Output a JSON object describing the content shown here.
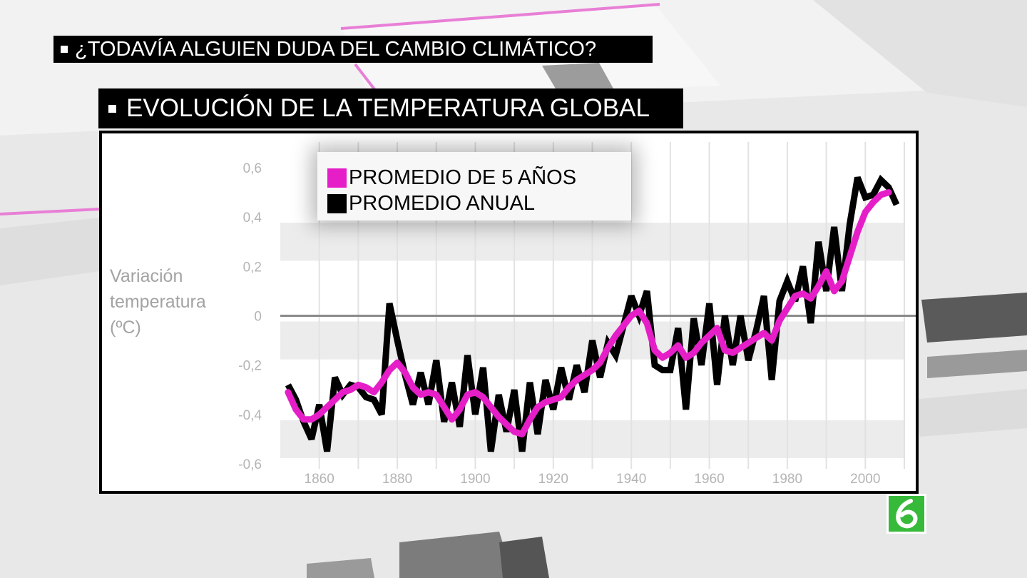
{
  "header": {
    "question": "¿TODAVÍA ALGUIEN DUDA DEL CAMBIO CLIMÁTICO?",
    "chart_title": "EVOLUCIÓN DE LA TEMPERATURA GLOBAL"
  },
  "colors": {
    "five_year": "#e51ec8",
    "annual": "#000000",
    "banner_bg": "#000000",
    "logo": "#37b93a"
  },
  "channel_logo": {
    "name": "la-sexta-logo-icon",
    "glyph": "6"
  },
  "chart_data": {
    "type": "line",
    "title": "EVOLUCIÓN DE LA TEMPERATURA GLOBAL",
    "ylabel": "Variación\ntemperatura\n(ºC)",
    "xlabel": "",
    "xlim": [
      1850,
      2010
    ],
    "ylim": [
      -0.6,
      0.6
    ],
    "x_ticks": [
      1860,
      1880,
      1900,
      1920,
      1940,
      1960,
      1980,
      2000
    ],
    "y_ticks": [
      0.6,
      0.4,
      0.2,
      0,
      -0.2,
      -0.4,
      -0.6
    ],
    "y_tick_labels": [
      "0,6",
      "0,4",
      "0,2",
      "0",
      "-0,2",
      "-0,4",
      "-0,6"
    ],
    "legend_placement": "top-left",
    "grid": true,
    "series": [
      {
        "name": "PROMEDIO DE 5 AÑOS",
        "color": "#e51ec8",
        "x": [
          1852,
          1854,
          1856,
          1858,
          1860,
          1862,
          1864,
          1866,
          1868,
          1870,
          1872,
          1874,
          1876,
          1878,
          1880,
          1882,
          1884,
          1886,
          1888,
          1890,
          1892,
          1894,
          1896,
          1898,
          1900,
          1902,
          1904,
          1906,
          1908,
          1910,
          1912,
          1914,
          1916,
          1918,
          1920,
          1922,
          1924,
          1926,
          1928,
          1930,
          1932,
          1934,
          1936,
          1938,
          1940,
          1942,
          1944,
          1946,
          1948,
          1950,
          1952,
          1954,
          1956,
          1958,
          1960,
          1962,
          1964,
          1966,
          1968,
          1970,
          1972,
          1974,
          1976,
          1978,
          1980,
          1982,
          1984,
          1986,
          1988,
          1990,
          1992,
          1994,
          1996,
          1998,
          2000,
          2002,
          2004,
          2006
        ],
        "y": [
          -0.31,
          -0.38,
          -0.42,
          -0.42,
          -0.4,
          -0.37,
          -0.34,
          -0.31,
          -0.3,
          -0.28,
          -0.29,
          -0.31,
          -0.27,
          -0.22,
          -0.19,
          -0.23,
          -0.29,
          -0.32,
          -0.31,
          -0.32,
          -0.37,
          -0.42,
          -0.38,
          -0.32,
          -0.31,
          -0.33,
          -0.37,
          -0.41,
          -0.44,
          -0.47,
          -0.48,
          -0.42,
          -0.37,
          -0.35,
          -0.34,
          -0.33,
          -0.29,
          -0.26,
          -0.24,
          -0.22,
          -0.19,
          -0.13,
          -0.08,
          -0.04,
          0.0,
          0.02,
          -0.03,
          -0.14,
          -0.17,
          -0.15,
          -0.12,
          -0.17,
          -0.15,
          -0.11,
          -0.08,
          -0.05,
          -0.14,
          -0.15,
          -0.13,
          -0.11,
          -0.09,
          -0.07,
          -0.1,
          -0.02,
          0.03,
          0.08,
          0.09,
          0.07,
          0.12,
          0.18,
          0.1,
          0.14,
          0.24,
          0.34,
          0.42,
          0.46,
          0.49,
          0.5
        ]
      },
      {
        "name": "PROMEDIO ANUAL",
        "color": "#000000",
        "x": [
          1852,
          1854,
          1856,
          1858,
          1860,
          1862,
          1864,
          1866,
          1868,
          1870,
          1872,
          1874,
          1876,
          1878,
          1880,
          1882,
          1884,
          1886,
          1888,
          1890,
          1892,
          1894,
          1896,
          1898,
          1900,
          1902,
          1904,
          1906,
          1908,
          1910,
          1912,
          1914,
          1916,
          1918,
          1920,
          1922,
          1924,
          1926,
          1928,
          1930,
          1932,
          1934,
          1936,
          1938,
          1940,
          1942,
          1944,
          1946,
          1948,
          1950,
          1952,
          1954,
          1956,
          1958,
          1960,
          1962,
          1964,
          1966,
          1968,
          1970,
          1972,
          1974,
          1976,
          1978,
          1980,
          1982,
          1984,
          1986,
          1988,
          1990,
          1992,
          1994,
          1996,
          1998,
          2000,
          2002,
          2004,
          2006,
          2008
        ],
        "y": [
          -0.28,
          -0.34,
          -0.43,
          -0.5,
          -0.36,
          -0.55,
          -0.25,
          -0.32,
          -0.28,
          -0.29,
          -0.33,
          -0.34,
          -0.4,
          0.05,
          -0.1,
          -0.24,
          -0.36,
          -0.23,
          -0.36,
          -0.18,
          -0.43,
          -0.27,
          -0.45,
          -0.16,
          -0.4,
          -0.21,
          -0.55,
          -0.32,
          -0.47,
          -0.3,
          -0.55,
          -0.27,
          -0.48,
          -0.26,
          -0.38,
          -0.21,
          -0.34,
          -0.2,
          -0.31,
          -0.1,
          -0.25,
          -0.11,
          -0.16,
          -0.04,
          0.08,
          0.0,
          0.1,
          -0.2,
          -0.22,
          -0.22,
          -0.05,
          -0.38,
          -0.01,
          -0.2,
          0.05,
          -0.28,
          0.0,
          -0.2,
          0.0,
          -0.18,
          -0.06,
          0.08,
          -0.26,
          0.06,
          0.14,
          0.06,
          0.2,
          -0.03,
          0.3,
          0.1,
          0.36,
          0.1,
          0.37,
          0.56,
          0.48,
          0.49,
          0.55,
          0.52,
          0.45
        ]
      }
    ]
  }
}
